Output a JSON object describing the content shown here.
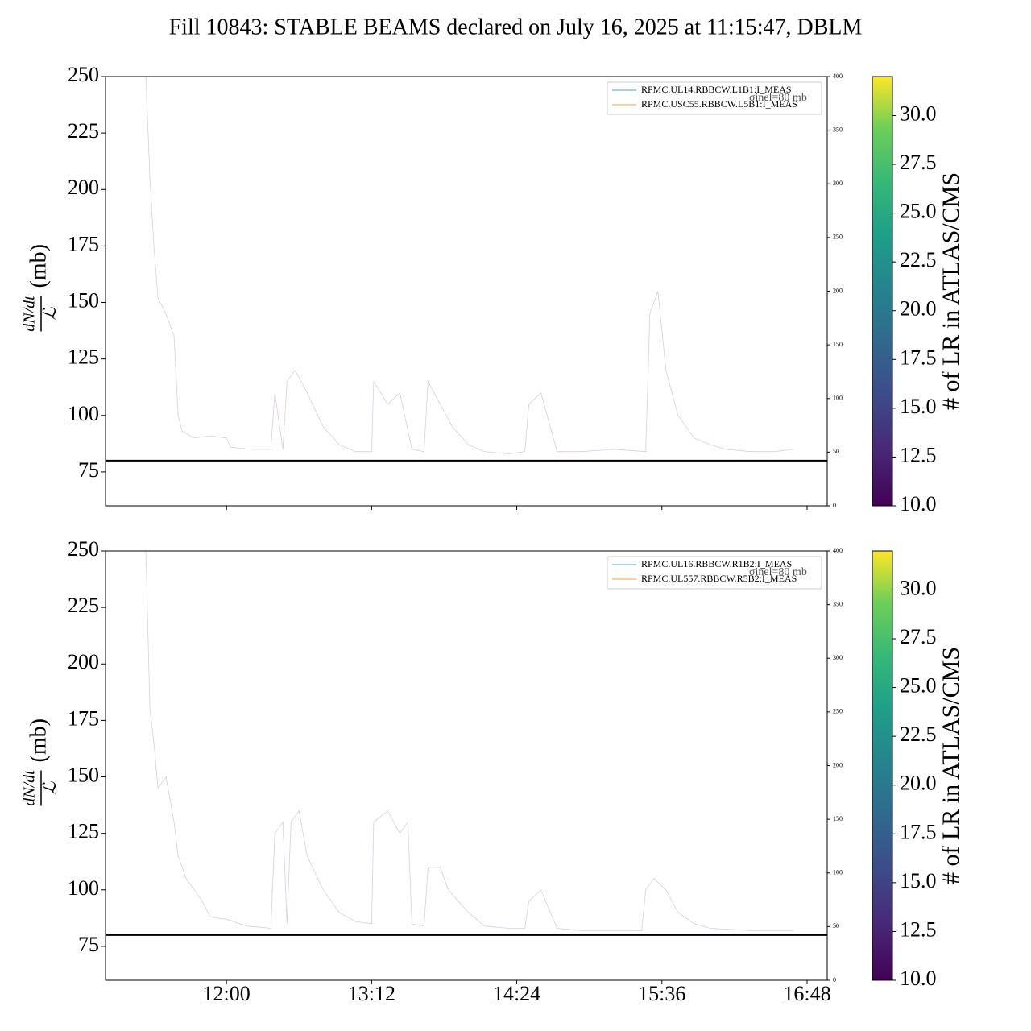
{
  "title": "Fill 10843: STABLE BEAMS declared on July 16, 2025 at 11:15:47, DBLM",
  "chart_data": [
    {
      "type": "line",
      "ylabel_numerator": "dN/dt",
      "ylabel_denominator": "ℒ",
      "ylabel_unit": "(mb)",
      "x": [
        "11:20",
        "11:22",
        "11:24",
        "11:26",
        "11:30",
        "11:34",
        "11:36",
        "11:38",
        "11:44",
        "11:52",
        "12:00",
        "12:02",
        "12:12",
        "12:22",
        "12:24",
        "12:28",
        "12:30",
        "12:34",
        "12:40",
        "12:48",
        "12:56",
        "13:04",
        "13:12",
        "13:13",
        "13:20",
        "13:26",
        "13:32",
        "13:38",
        "13:40",
        "13:46",
        "13:52",
        "14:00",
        "14:08",
        "14:20",
        "14:28",
        "14:30",
        "14:36",
        "14:44",
        "14:56",
        "15:12",
        "15:28",
        "15:30",
        "15:34",
        "15:38",
        "15:44",
        "15:52",
        "16:00",
        "16:08",
        "16:20",
        "16:32",
        "16:41"
      ],
      "values": [
        250,
        205,
        175,
        152,
        145,
        135,
        100,
        93,
        90,
        91,
        90,
        86,
        85,
        85,
        110,
        85,
        115,
        120,
        110,
        95,
        87,
        84,
        84,
        115,
        105,
        110,
        85,
        84,
        115,
        105,
        95,
        87,
        84,
        83,
        84,
        105,
        110,
        84,
        84,
        85,
        84,
        145,
        155,
        120,
        100,
        90,
        87,
        85,
        84,
        84,
        85
      ],
      "color": "#d8cce2",
      "xlim": [
        "11:00",
        "16:58"
      ],
      "ylim": [
        60,
        250
      ],
      "yticks": [
        75,
        100,
        125,
        150,
        175,
        200,
        225,
        250
      ],
      "y2lim": [
        0,
        400
      ],
      "y2ticks": [
        0,
        50,
        100,
        150,
        200,
        250,
        300,
        350,
        400
      ],
      "reference_line": {
        "value": 80,
        "label": "σinel=80 mb"
      },
      "series": [
        {
          "name": "RPMC.UL14.RBBCW.L1B1:I_MEAS",
          "color": "#1f77b4",
          "axis": "y2",
          "x": [
            "11:16",
            "16:42"
          ],
          "values": [
            0,
            0
          ]
        },
        {
          "name": "RPMC.USC55.RBBCW.L5B1:I_MEAS",
          "color": "#ff7f0e",
          "axis": "y2",
          "x": [
            "11:16",
            "16:42"
          ],
          "values": [
            0,
            0
          ]
        }
      ],
      "legend": "upper right",
      "colorbar": {
        "label": "# of LR in ATLAS/CMS",
        "colormap": "viridis",
        "lim": [
          10,
          32
        ],
        "ticks": [
          {
            "value": 10,
            "label": "10.0"
          },
          {
            "value": 12.5,
            "label": "12.5"
          },
          {
            "value": 15,
            "label": "15.0"
          },
          {
            "value": 17.5,
            "label": "17.5"
          },
          {
            "value": 20,
            "label": "20.0"
          },
          {
            "value": 22.5,
            "label": "22.5"
          },
          {
            "value": 25,
            "label": "25.0"
          },
          {
            "value": 27.5,
            "label": "27.5"
          },
          {
            "value": 30,
            "label": "30.0"
          }
        ]
      }
    },
    {
      "type": "line",
      "ylabel_numerator": "dN/dt",
      "ylabel_denominator": "ℒ",
      "ylabel_unit": "(mb)",
      "x": [
        "11:20",
        "11:22",
        "11:24",
        "11:26",
        "11:30",
        "11:34",
        "11:36",
        "11:40",
        "11:44",
        "11:48",
        "11:52",
        "12:00",
        "12:10",
        "12:22",
        "12:24",
        "12:28",
        "12:30",
        "12:32",
        "12:36",
        "12:40",
        "12:48",
        "12:56",
        "13:04",
        "13:12",
        "13:13",
        "13:20",
        "13:26",
        "13:30",
        "13:32",
        "13:38",
        "13:40",
        "13:46",
        "13:50",
        "14:00",
        "14:08",
        "14:20",
        "14:28",
        "14:30",
        "14:36",
        "14:44",
        "14:56",
        "15:12",
        "15:26",
        "15:28",
        "15:32",
        "15:38",
        "15:44",
        "15:52",
        "16:00",
        "16:20",
        "16:41"
      ],
      "values": [
        250,
        180,
        165,
        145,
        150,
        130,
        115,
        105,
        100,
        95,
        88,
        87,
        84,
        83,
        125,
        130,
        85,
        130,
        135,
        115,
        100,
        90,
        86,
        85,
        130,
        135,
        125,
        130,
        85,
        84,
        110,
        110,
        100,
        90,
        84,
        83,
        83,
        95,
        100,
        83,
        82,
        82,
        82,
        100,
        105,
        100,
        90,
        85,
        83,
        82,
        82
      ],
      "color": "#d8cce2",
      "xlim": [
        "11:00",
        "16:58"
      ],
      "xticks": [
        "12:00",
        "13:12",
        "14:24",
        "15:36",
        "16:48"
      ],
      "ylim": [
        60,
        250
      ],
      "yticks": [
        75,
        100,
        125,
        150,
        175,
        200,
        225,
        250
      ],
      "y2lim": [
        0,
        400
      ],
      "y2ticks": [
        0,
        50,
        100,
        150,
        200,
        250,
        300,
        350,
        400
      ],
      "reference_line": {
        "value": 80,
        "label": "σinel=80 mb"
      },
      "series": [
        {
          "name": "RPMC.UL16.RBBCW.R1B2:I_MEAS",
          "color": "#1f77b4",
          "axis": "y2",
          "x": [
            "11:16",
            "16:42"
          ],
          "values": [
            0,
            0
          ]
        },
        {
          "name": "RPMC.UL557.RBBCW.R5B2:I_MEAS",
          "color": "#ff7f0e",
          "axis": "y2",
          "x": [
            "11:16",
            "16:42"
          ],
          "values": [
            0,
            0
          ]
        }
      ],
      "legend": "upper right",
      "colorbar": {
        "label": "# of LR in ATLAS/CMS",
        "colormap": "viridis",
        "lim": [
          10,
          32
        ],
        "ticks": [
          {
            "value": 10,
            "label": "10.0"
          },
          {
            "value": 12.5,
            "label": "12.5"
          },
          {
            "value": 15,
            "label": "15.0"
          },
          {
            "value": 17.5,
            "label": "17.5"
          },
          {
            "value": 20,
            "label": "20.0"
          },
          {
            "value": 22.5,
            "label": "22.5"
          },
          {
            "value": 25,
            "label": "25.0"
          },
          {
            "value": 27.5,
            "label": "27.5"
          },
          {
            "value": 30,
            "label": "30.0"
          }
        ]
      }
    }
  ]
}
